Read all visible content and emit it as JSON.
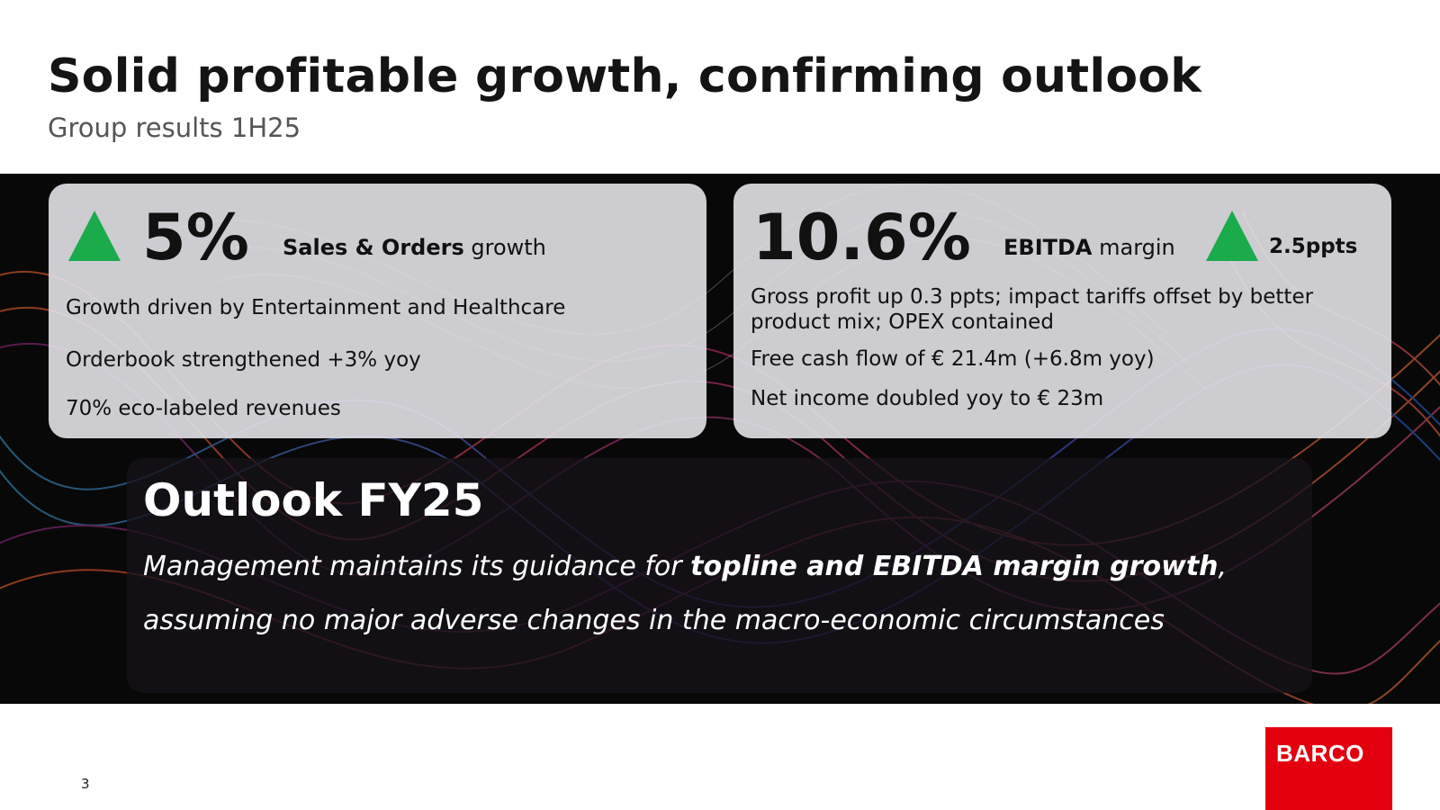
{
  "slide": {
    "title": "Solid profitable growth, confirming outlook",
    "subtitle": "Group results 1H25",
    "page_number": "3"
  },
  "left_card": {
    "kpi_value": "5%",
    "kpi_label_bold": "Sales & Orders",
    "kpi_label_rest": " growth",
    "trend": "up",
    "points": [
      "Growth driven by Entertainment and Healthcare",
      "Orderbook strengthened +3% yoy",
      "70% eco-labeled revenues"
    ]
  },
  "right_card": {
    "kpi_value": "10.6%",
    "kpi_label_bold": "EBITDA",
    "kpi_label_rest": " margin",
    "trend": "up",
    "delta": "2.5ppts",
    "points": [
      "Gross profit up 0.3 ppts; impact tariffs offset by better product mix; OPEX contained",
      "Free cash flow of € 21.4m (+6.8m yoy)",
      "Net income doubled yoy to € 23m"
    ]
  },
  "outlook": {
    "title": "Outlook FY25",
    "line1_prefix": "Management maintains its guidance for ",
    "line1_bold": "topline and EBITDA margin growth",
    "line1_suffix": ",",
    "line2": "assuming no major adverse changes in the macro-economic circumstances"
  },
  "logo": {
    "text": "BARCO",
    "color": "#e3000f"
  },
  "colors": {
    "trend_up": "#1aab4b",
    "band_background": "#080808"
  }
}
